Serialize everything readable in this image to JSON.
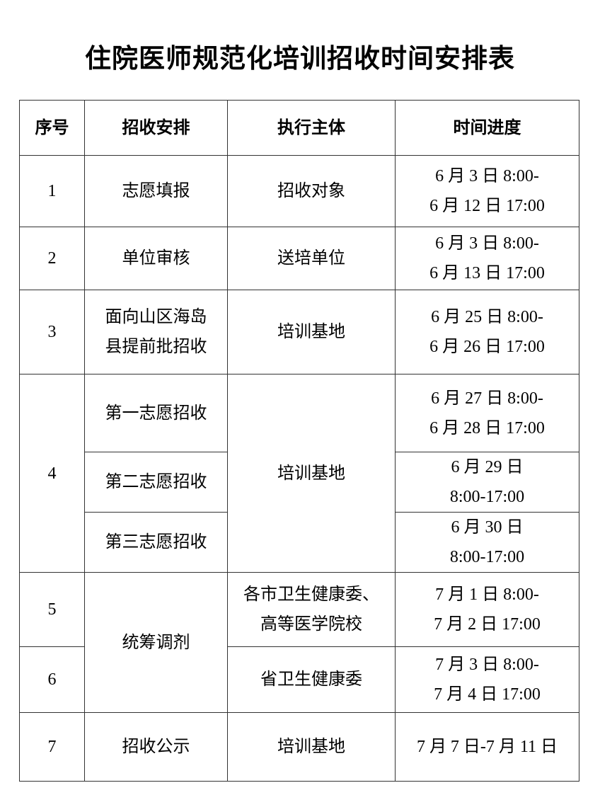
{
  "title": "住院医师规范化培训招收时间安排表",
  "headers": [
    "序号",
    "招收安排",
    "执行主体",
    "时间进度"
  ],
  "rows": [
    {
      "no": "1",
      "arrangement": [
        "志愿填报"
      ],
      "subject": [
        "招收对象"
      ],
      "time": [
        "6 月 3 日 8:00-",
        "6 月 12 日 17:00"
      ]
    },
    {
      "no": "2",
      "arrangement": [
        "单位审核"
      ],
      "subject": [
        "送培单位"
      ],
      "time": [
        "6 月 3 日 8:00-",
        "6 月 13 日 17:00"
      ]
    },
    {
      "no": "3",
      "arrangement": [
        "面向山区海岛",
        "县提前批招收"
      ],
      "subject": [
        "培训基地"
      ],
      "time": [
        "6 月 25 日 8:00-",
        "6 月 26 日 17:00"
      ]
    },
    {
      "no": "4",
      "arrangement": [
        "第一志愿招收"
      ],
      "subject": [
        "培训基地"
      ],
      "time": [
        "6 月 27 日 8:00-",
        "6 月 28 日 17:00"
      ]
    },
    {
      "arrangement": [
        "第二志愿招收"
      ],
      "time": [
        "6 月 29 日",
        "8:00-17:00"
      ]
    },
    {
      "arrangement": [
        "第三志愿招收"
      ],
      "time": [
        "6 月 30 日",
        "8:00-17:00"
      ]
    },
    {
      "no": "5",
      "arrangement": [
        "统筹调剂"
      ],
      "subject": [
        "各市卫生健康委、",
        "高等医学院校"
      ],
      "time": [
        "7 月 1 日 8:00-",
        "7 月 2 日 17:00"
      ]
    },
    {
      "no": "6",
      "subject": [
        "省卫生健康委"
      ],
      "time": [
        "7 月 3 日 8:00-",
        "7 月 4 日 17:00"
      ]
    },
    {
      "no": "7",
      "arrangement": [
        "招收公示"
      ],
      "subject": [
        "培训基地"
      ],
      "time": [
        "7 月 7 日-7 月 11 日"
      ]
    }
  ]
}
